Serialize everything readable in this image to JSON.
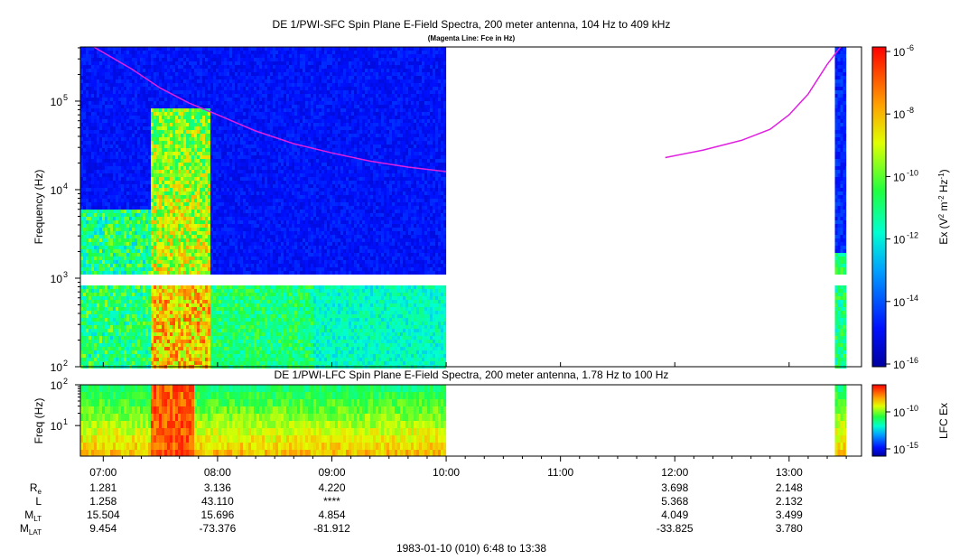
{
  "chart_data": [
    {
      "type": "heatmap",
      "title": "DE 1/PWI-SFC  Spin Plane E-Field Spectra, 200 meter antenna, 104 Hz to 409 kHz",
      "subtitle": "(Magenta Line: Fce in Hz)",
      "ylabel": "Frequency (Hz)",
      "yscale": "log",
      "ylim": [
        100,
        409000
      ],
      "xlim": [
        "06:48",
        "13:38"
      ],
      "y_ticks": [
        {
          "base": "10",
          "exp": "2",
          "value": 100
        },
        {
          "base": "10",
          "exp": "3",
          "value": 1000
        },
        {
          "base": "10",
          "exp": "4",
          "value": 10000
        },
        {
          "base": "10",
          "exp": "5",
          "value": 100000
        }
      ],
      "colorbar": {
        "label": "Ex (V² m⁻² Hz⁻¹)",
        "scale": "log",
        "range": [
          1e-16,
          1e-06
        ],
        "ticks": [
          {
            "base": "10",
            "exp": "-6"
          },
          {
            "base": "10",
            "exp": "-8"
          },
          {
            "base": "10",
            "exp": "-10"
          },
          {
            "base": "10",
            "exp": "-12"
          },
          {
            "base": "10",
            "exp": "-14"
          },
          {
            "base": "10",
            "exp": "-16"
          }
        ]
      },
      "data_intervals": [
        [
          "06:48",
          "10:00"
        ],
        [
          "13:24",
          "13:30"
        ]
      ],
      "intense_emission": {
        "time_range": [
          "07:24",
          "07:55"
        ],
        "freq_max_hz": 90000
      },
      "fce_line": {
        "name": "Fce",
        "color": "#e020e0",
        "segments": [
          {
            "x": [
              "06:55",
              "07:15",
              "07:30",
              "07:45",
              "08:00",
              "08:20",
              "08:40",
              "09:00",
              "09:20",
              "09:40",
              "10:00"
            ],
            "y": [
              409000,
              230000,
              140000,
              95000,
              70000,
              46000,
              33000,
              26000,
              21000,
              18000,
              16000
            ]
          },
          {
            "x": [
              "11:55",
              "12:15",
              "12:35",
              "12:50",
              "13:00",
              "13:10",
              "13:20",
              "13:27"
            ],
            "y": [
              23000,
              28000,
              36000,
              48000,
              70000,
              120000,
              260000,
              409000
            ]
          }
        ]
      }
    },
    {
      "type": "heatmap",
      "title": "DE 1/PWI-LFC  Spin Plane E-Field Spectra, 200 meter antenna, 1.78 Hz to 100 Hz",
      "ylabel": "Freq (Hz)",
      "yscale": "log",
      "ylim": [
        1.78,
        100
      ],
      "y_ticks": [
        {
          "base": "10",
          "exp": "1",
          "value": 10
        },
        {
          "base": "10",
          "exp": "2",
          "value": 100
        }
      ],
      "colorbar": {
        "label": "LFC Ex",
        "scale": "log",
        "ticks": [
          {
            "base": "10",
            "exp": "-10"
          },
          {
            "base": "10",
            "exp": "-15"
          }
        ]
      },
      "data_intervals": [
        [
          "06:48",
          "10:00"
        ],
        [
          "13:24",
          "13:30"
        ]
      ]
    }
  ],
  "x_axis": {
    "tick_labels": [
      "07:00",
      "08:00",
      "09:00",
      "10:00",
      "11:00",
      "12:00",
      "13:00"
    ],
    "tick_minutes": [
      420,
      480,
      540,
      600,
      660,
      720,
      780
    ],
    "range_minutes": [
      408,
      818
    ]
  },
  "ephemeris": {
    "rows": [
      {
        "name": "Re",
        "base": "R",
        "sub": "e",
        "values": [
          "1.281",
          "3.136",
          "4.220",
          "",
          "",
          "3.698",
          "2.148"
        ]
      },
      {
        "name": "L",
        "base": "L",
        "sub": "",
        "values": [
          "1.258",
          "43.110",
          "****",
          "",
          "",
          "5.368",
          "2.132"
        ]
      },
      {
        "name": "MLT",
        "base": "M",
        "sub": "LT",
        "values": [
          "15.504",
          "15.696",
          "4.854",
          "",
          "",
          "4.049",
          "3.499"
        ]
      },
      {
        "name": "MLAT",
        "base": "M",
        "sub": "LAT",
        "values": [
          "9.454",
          "-73.376",
          "-81.912",
          "",
          "",
          "-33.825",
          "3.780"
        ]
      }
    ]
  },
  "footer": "1983-01-10 (010) 6:48 to 13:38"
}
